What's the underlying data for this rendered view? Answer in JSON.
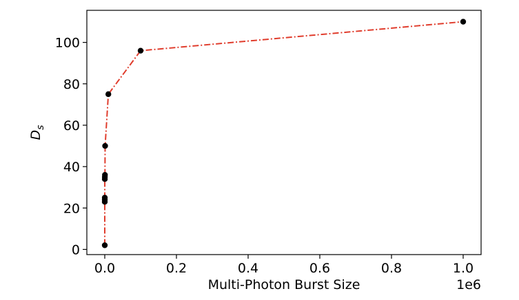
{
  "chart_data": {
    "type": "line",
    "title": "",
    "xlabel": "Multi-Photon Burst Size",
    "ylabel_main": "D",
    "ylabel_sub": "s",
    "x_offset_label": "1e6",
    "x_scale": 1000000,
    "xlim": [
      -50000,
      1050000
    ],
    "ylim": [
      -2.5,
      115.5
    ],
    "x_ticks": [
      0,
      200000,
      400000,
      600000,
      800000,
      1000000
    ],
    "x_tick_labels": [
      "0.0",
      "0.2",
      "0.4",
      "0.6",
      "0.8",
      "1.0"
    ],
    "y_ticks": [
      0,
      20,
      40,
      60,
      80,
      100
    ],
    "y_tick_labels": [
      "0",
      "20",
      "40",
      "60",
      "80",
      "100"
    ],
    "grid": false,
    "line_color": "#e03c2c",
    "marker_color": "#000000",
    "line_style": "dash-dot",
    "series": [
      {
        "x": [
          1,
          10,
          20,
          50,
          100,
          200,
          500,
          1000,
          10000,
          100000,
          1000000
        ],
        "y": [
          2,
          23,
          24,
          25,
          34,
          35,
          36,
          50,
          75,
          96,
          110
        ]
      }
    ]
  }
}
